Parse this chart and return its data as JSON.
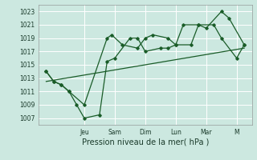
{
  "xlabel": "Pression niveau de la mer( hPa )",
  "bg_color": "#cce8e0",
  "grid_color": "#ffffff",
  "line_color": "#1a5c28",
  "yticks": [
    1007,
    1009,
    1011,
    1013,
    1015,
    1017,
    1019,
    1021,
    1023
  ],
  "ylim": [
    1006.0,
    1024.0
  ],
  "xlim": [
    -0.5,
    13.5
  ],
  "day_labels": [
    "Jeu",
    "Sam",
    "Dim",
    "Lun",
    "Mar",
    "M"
  ],
  "day_positions": [
    2.5,
    4.5,
    6.5,
    8.5,
    10.5,
    12.5
  ],
  "line1_x": [
    0,
    0.5,
    1.0,
    1.5,
    2.5,
    4.0,
    4.3,
    5.0,
    6.0,
    6.5,
    7.0,
    8.0,
    8.5,
    9.0,
    10.0,
    10.5,
    11.5,
    12.0,
    13.0
  ],
  "line1_y": [
    1014,
    1012.5,
    1012,
    1011,
    1009,
    1019,
    1019.5,
    1018,
    1017.5,
    1019,
    1019.5,
    1019,
    1018,
    1021,
    1021,
    1020.5,
    1023,
    1022,
    1018
  ],
  "line2_x": [
    0,
    0.5,
    1.0,
    1.5,
    2.0,
    2.5,
    3.5,
    4.0,
    4.5,
    5.5,
    6.0,
    6.5,
    7.5,
    8.0,
    8.5,
    9.5,
    10.0,
    11.0,
    11.5,
    12.5,
    13.0
  ],
  "line2_y": [
    1014,
    1012.5,
    1012,
    1011,
    1009,
    1007,
    1007.5,
    1015.5,
    1016,
    1019,
    1019,
    1017,
    1017.5,
    1017.5,
    1018,
    1018,
    1021,
    1021,
    1019,
    1016,
    1018
  ],
  "trend_x": [
    0,
    13.0
  ],
  "trend_y": [
    1012.5,
    1017.5
  ],
  "xlabel_fontsize": 7,
  "tick_fontsize": 5.5
}
